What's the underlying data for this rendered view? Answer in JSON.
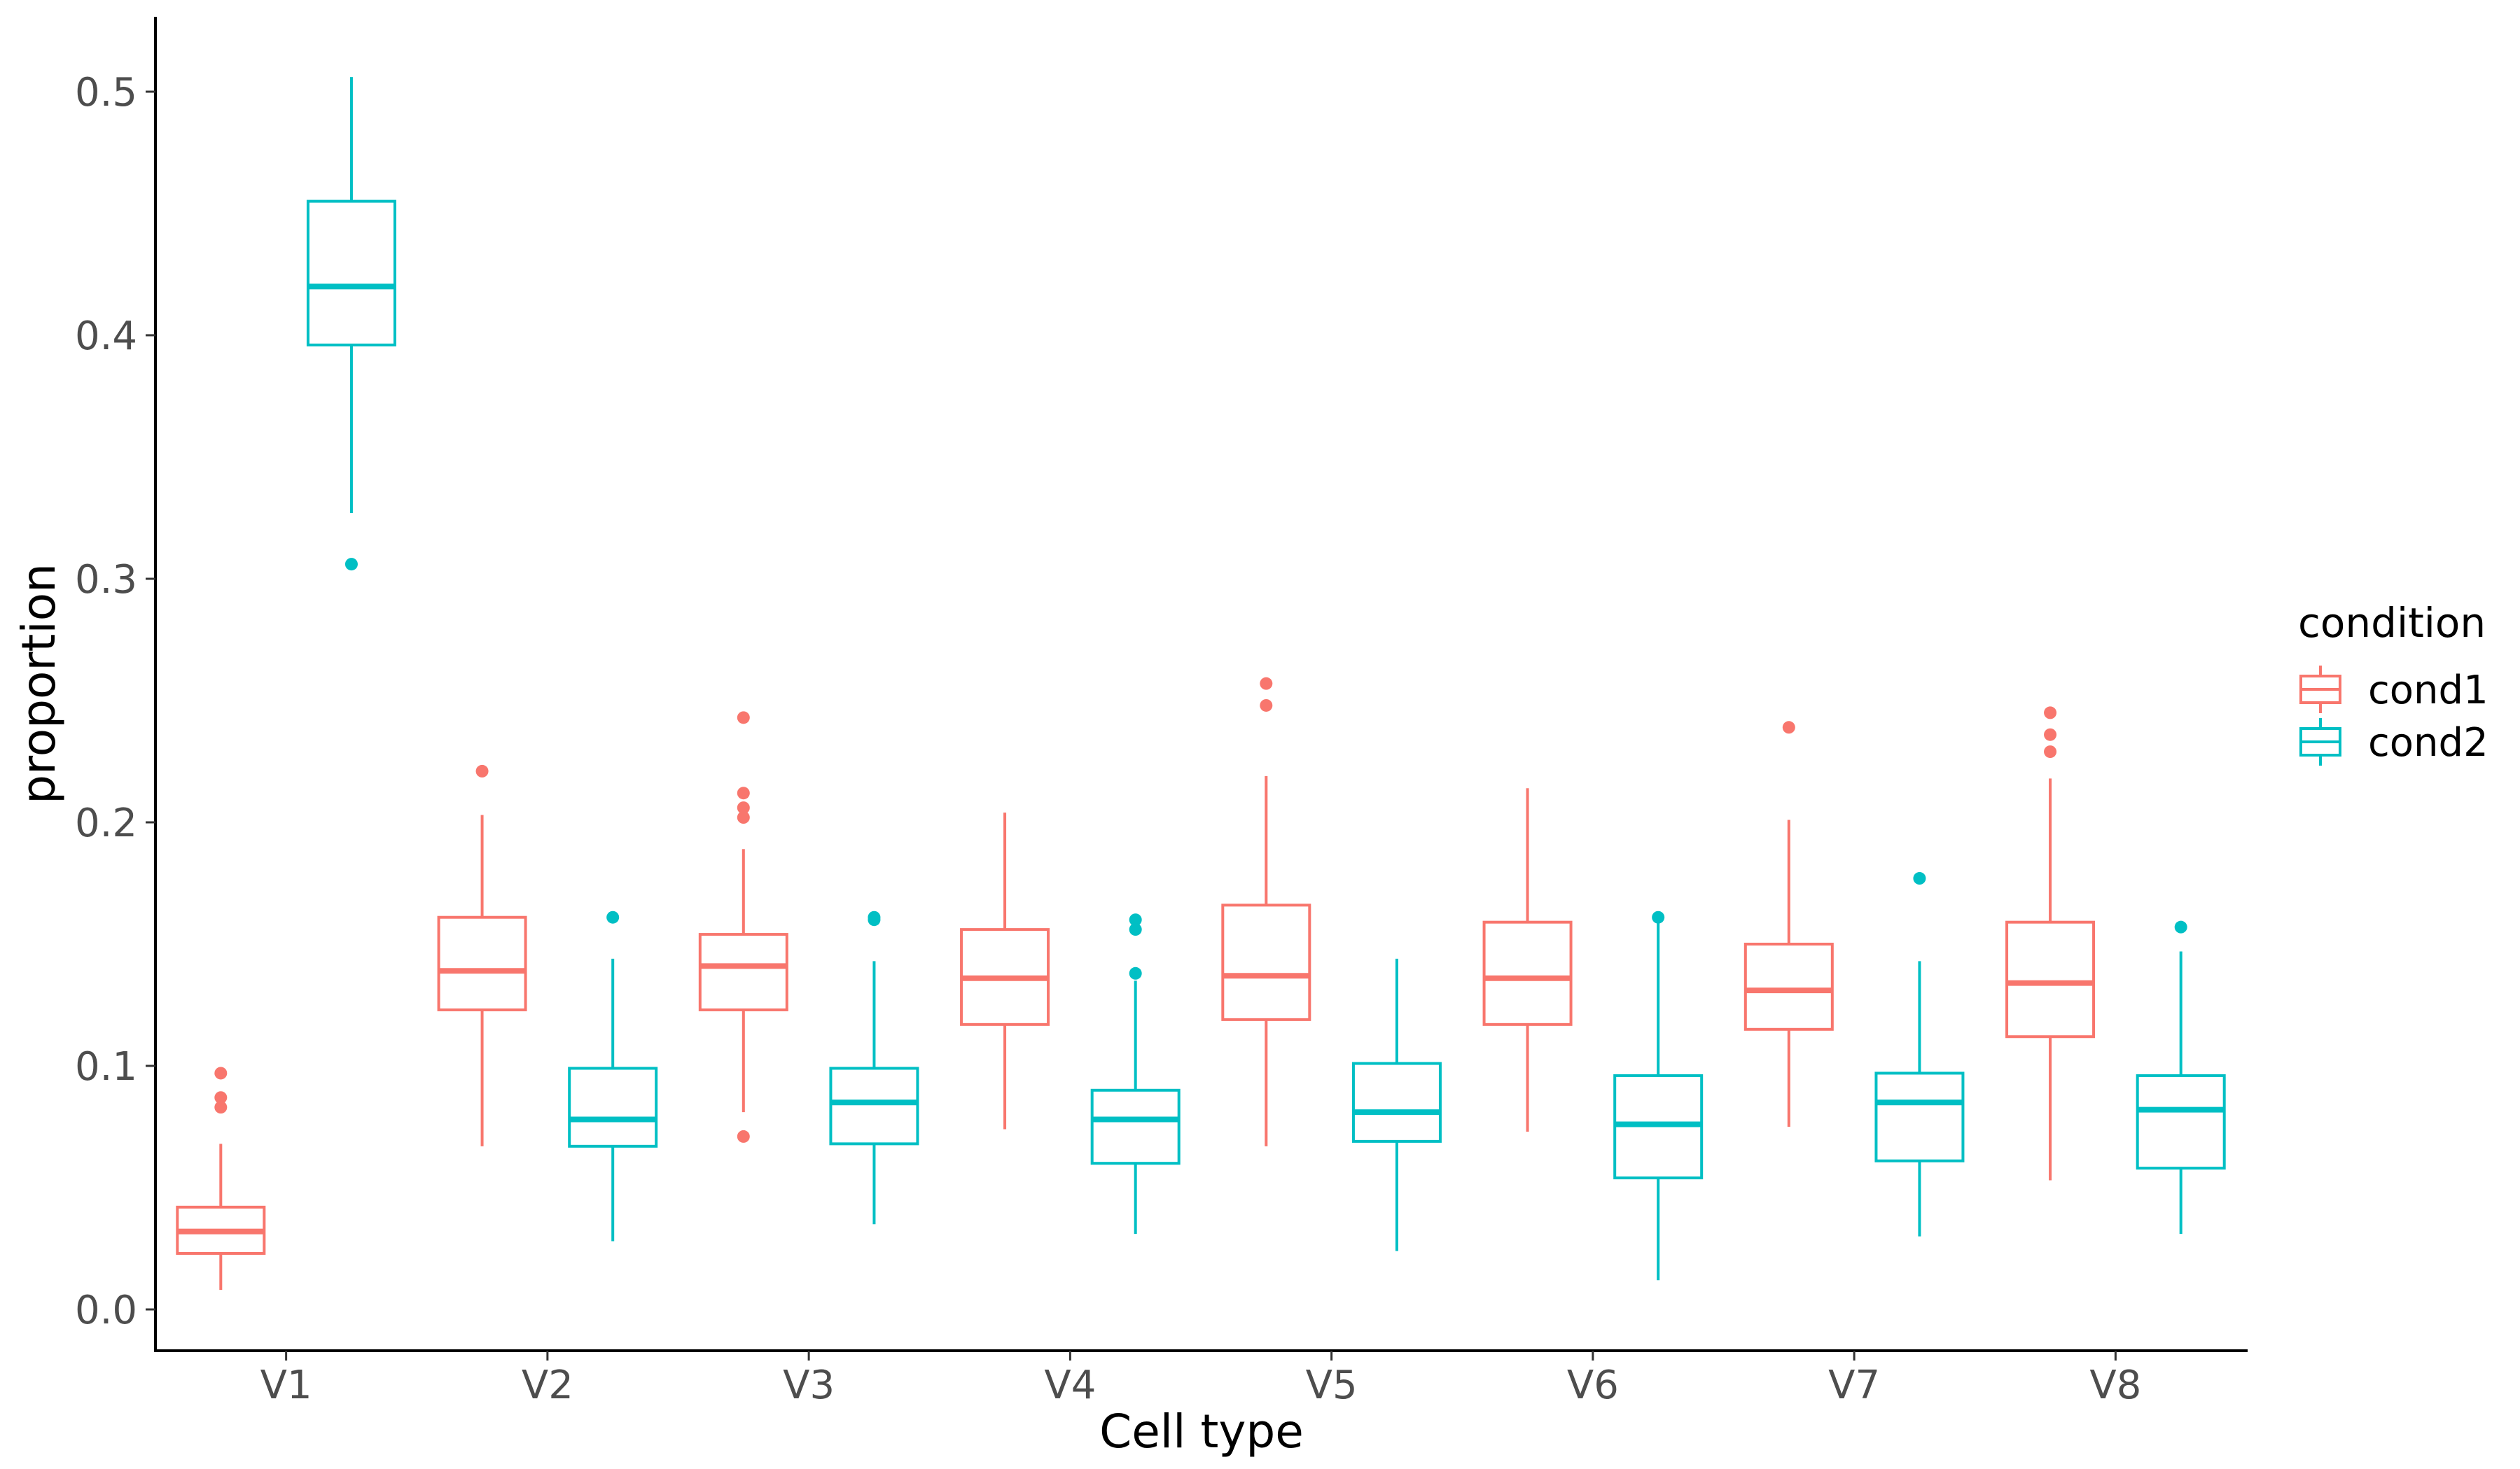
{
  "chart_data": {
    "type": "box",
    "xlabel": "Cell type",
    "ylabel": "proportion",
    "ylim": [
      -0.017,
      0.532
    ],
    "yticks": [
      "0.0",
      "0.1",
      "0.2",
      "0.3",
      "0.4",
      "0.5"
    ],
    "categories": [
      "V1",
      "V2",
      "V3",
      "V4",
      "V5",
      "V6",
      "V7",
      "V8"
    ],
    "legend": {
      "title": "condition",
      "position": "right"
    },
    "grid": false,
    "series": [
      {
        "name": "cond1",
        "color": "#F8766D",
        "boxes": [
          {
            "category": "V1",
            "whisker_low": 0.008,
            "q1": 0.023,
            "median": 0.032,
            "q3": 0.042,
            "whisker_high": 0.068,
            "outliers": [
              0.097,
              0.087,
              0.083
            ]
          },
          {
            "category": "V2",
            "whisker_low": 0.067,
            "q1": 0.123,
            "median": 0.139,
            "q3": 0.161,
            "whisker_high": 0.203,
            "outliers": [
              0.221
            ]
          },
          {
            "category": "V3",
            "whisker_low": 0.081,
            "q1": 0.123,
            "median": 0.141,
            "q3": 0.154,
            "whisker_high": 0.189,
            "outliers": [
              0.243,
              0.212,
              0.206,
              0.202,
              0.071
            ]
          },
          {
            "category": "V4",
            "whisker_low": 0.074,
            "q1": 0.117,
            "median": 0.136,
            "q3": 0.156,
            "whisker_high": 0.204,
            "outliers": []
          },
          {
            "category": "V5",
            "whisker_low": 0.067,
            "q1": 0.119,
            "median": 0.137,
            "q3": 0.166,
            "whisker_high": 0.219,
            "outliers": [
              0.257,
              0.248
            ]
          },
          {
            "category": "V6",
            "whisker_low": 0.073,
            "q1": 0.117,
            "median": 0.136,
            "q3": 0.159,
            "whisker_high": 0.214,
            "outliers": []
          },
          {
            "category": "V7",
            "whisker_low": 0.075,
            "q1": 0.115,
            "median": 0.131,
            "q3": 0.15,
            "whisker_high": 0.201,
            "outliers": [
              0.239
            ]
          },
          {
            "category": "V8",
            "whisker_low": 0.053,
            "q1": 0.112,
            "median": 0.134,
            "q3": 0.159,
            "whisker_high": 0.218,
            "outliers": [
              0.245,
              0.236,
              0.229
            ]
          }
        ]
      },
      {
        "name": "cond2",
        "color": "#00BFC4",
        "boxes": [
          {
            "category": "V1",
            "whisker_low": 0.327,
            "q1": 0.396,
            "median": 0.42,
            "q3": 0.455,
            "whisker_high": 0.506,
            "outliers": [
              0.306
            ]
          },
          {
            "category": "V2",
            "whisker_low": 0.028,
            "q1": 0.067,
            "median": 0.078,
            "q3": 0.099,
            "whisker_high": 0.144,
            "outliers": [
              0.161
            ]
          },
          {
            "category": "V3",
            "whisker_low": 0.035,
            "q1": 0.068,
            "median": 0.085,
            "q3": 0.099,
            "whisker_high": 0.143,
            "outliers": [
              0.161,
              0.16
            ]
          },
          {
            "category": "V4",
            "whisker_low": 0.031,
            "q1": 0.06,
            "median": 0.078,
            "q3": 0.09,
            "whisker_high": 0.135,
            "outliers": [
              0.16,
              0.156,
              0.138
            ]
          },
          {
            "category": "V5",
            "whisker_low": 0.024,
            "q1": 0.069,
            "median": 0.081,
            "q3": 0.101,
            "whisker_high": 0.144,
            "outliers": []
          },
          {
            "category": "V6",
            "whisker_low": 0.012,
            "q1": 0.054,
            "median": 0.076,
            "q3": 0.096,
            "whisker_high": 0.16,
            "outliers": [
              0.161
            ]
          },
          {
            "category": "V7",
            "whisker_low": 0.03,
            "q1": 0.061,
            "median": 0.085,
            "q3": 0.097,
            "whisker_high": 0.143,
            "outliers": [
              0.177
            ]
          },
          {
            "category": "V8",
            "whisker_low": 0.031,
            "q1": 0.058,
            "median": 0.082,
            "q3": 0.096,
            "whisker_high": 0.147,
            "outliers": [
              0.157
            ]
          }
        ]
      }
    ]
  }
}
